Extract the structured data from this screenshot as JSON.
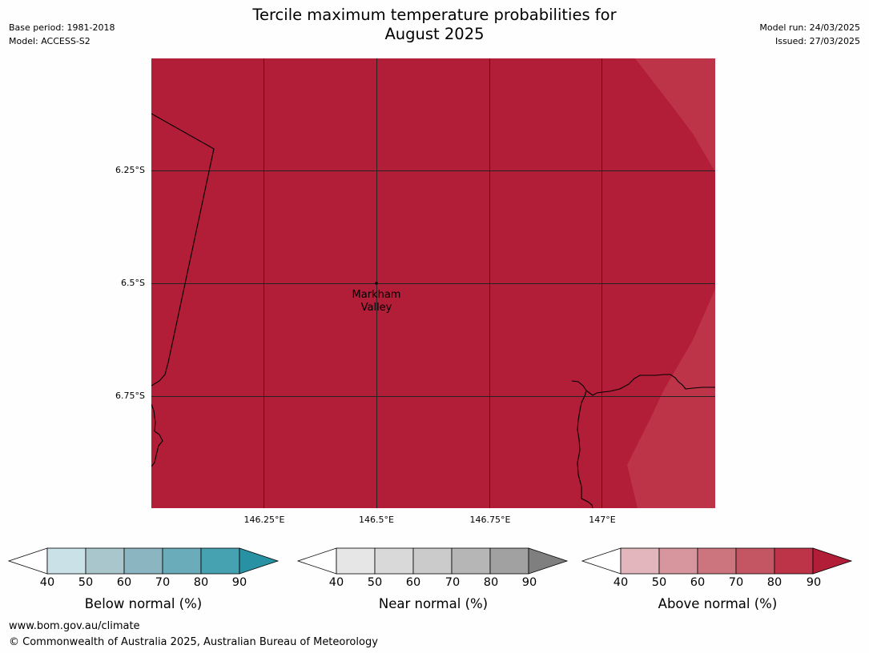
{
  "header": {
    "title_line1": "Tercile maximum temperature probabilities for",
    "title_line2": "August 2025",
    "base_period": "Base period: 1981-2018",
    "model": "Model: ACCESS-S2",
    "model_run": "Model run: 24/03/2025",
    "issued": "Issued: 27/03/2025"
  },
  "map": {
    "latitude_labels": [
      "6.25°S",
      "6.5°S",
      "6.75°S"
    ],
    "longitude_labels": [
      "146.25°E",
      "146.5°E",
      "146.75°E",
      "147°E"
    ],
    "place_marker": {
      "line1": "Markham",
      "line2": "Valley"
    },
    "colors": {
      "above_80_90": "#b21d38",
      "above_70_80": "#bd3449",
      "gridline": "#222222",
      "coastline": "#000000"
    }
  },
  "legends": {
    "below": {
      "title": "Below normal (%)",
      "ticks": [
        "40",
        "50",
        "60",
        "70",
        "80",
        "90"
      ],
      "colors": [
        "#c9e1e7",
        "#a9c6cc",
        "#8ab5c1",
        "#6bacbb",
        "#46a1b1",
        "#2891a3"
      ]
    },
    "near": {
      "title": "Near normal (%)",
      "ticks": [
        "40",
        "50",
        "60",
        "70",
        "80",
        "90"
      ],
      "colors": [
        "#e6e6e6",
        "#d9d9d9",
        "#cbcbcb",
        "#b6b6b6",
        "#a1a1a1",
        "#7f7f7f"
      ]
    },
    "above": {
      "title": "Above normal (%)",
      "ticks": [
        "40",
        "50",
        "60",
        "70",
        "80",
        "90"
      ],
      "colors": [
        "#e2b6bc",
        "#d7959d",
        "#cd757e",
        "#c45563",
        "#bd3449",
        "#b21d38"
      ]
    }
  },
  "footer": {
    "url": "www.bom.gov.au/climate",
    "copyright": "© Commonwealth of Australia 2025, Australian Bureau of Meteorology"
  }
}
